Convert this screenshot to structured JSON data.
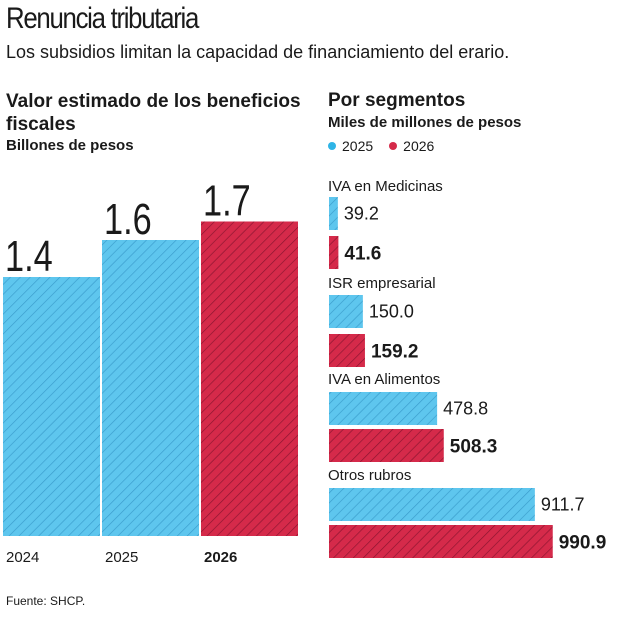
{
  "header": {
    "title": "Renuncia tributaria",
    "subtitle": "Los subsidios limitan la capacidad de financiamiento del erario."
  },
  "colors": {
    "y2025": "#5ec6ee",
    "y2026": "#d52a4a",
    "stripe_light": "#3a9ccc",
    "stripe_dark": "#8a1530"
  },
  "chart_data": [
    {
      "type": "bar",
      "title": "Valor estimado de los beneficios fiscales",
      "unit": "Billones de pesos",
      "categories": [
        "2024",
        "2025",
        "2026"
      ],
      "values": [
        1.4,
        1.6,
        1.7
      ],
      "value_labels": [
        "1.4",
        "1.6",
        "1.7"
      ],
      "bold_last_category": true
    },
    {
      "type": "bar",
      "orientation": "horizontal",
      "title": "Por segmentos",
      "unit": "Miles de millones de pesos",
      "legend": [
        "2025",
        "2026"
      ],
      "groups": [
        {
          "label": "IVA en Medicinas",
          "values": [
            39.2,
            41.6
          ],
          "labels": [
            "39.2",
            "41.6"
          ]
        },
        {
          "label": "ISR empresarial",
          "values": [
            150.0,
            159.2
          ],
          "labels": [
            "150.0",
            "159.2"
          ]
        },
        {
          "label": "IVA en Alimentos",
          "values": [
            478.8,
            508.3
          ],
          "labels": [
            "478.8",
            "508.3"
          ]
        },
        {
          "label": "Otros rubros",
          "values": [
            911.7,
            990.9
          ],
          "labels": [
            "911.7",
            "990.9"
          ]
        }
      ]
    }
  ],
  "footer": {
    "source": "Fuente: SHCP."
  }
}
